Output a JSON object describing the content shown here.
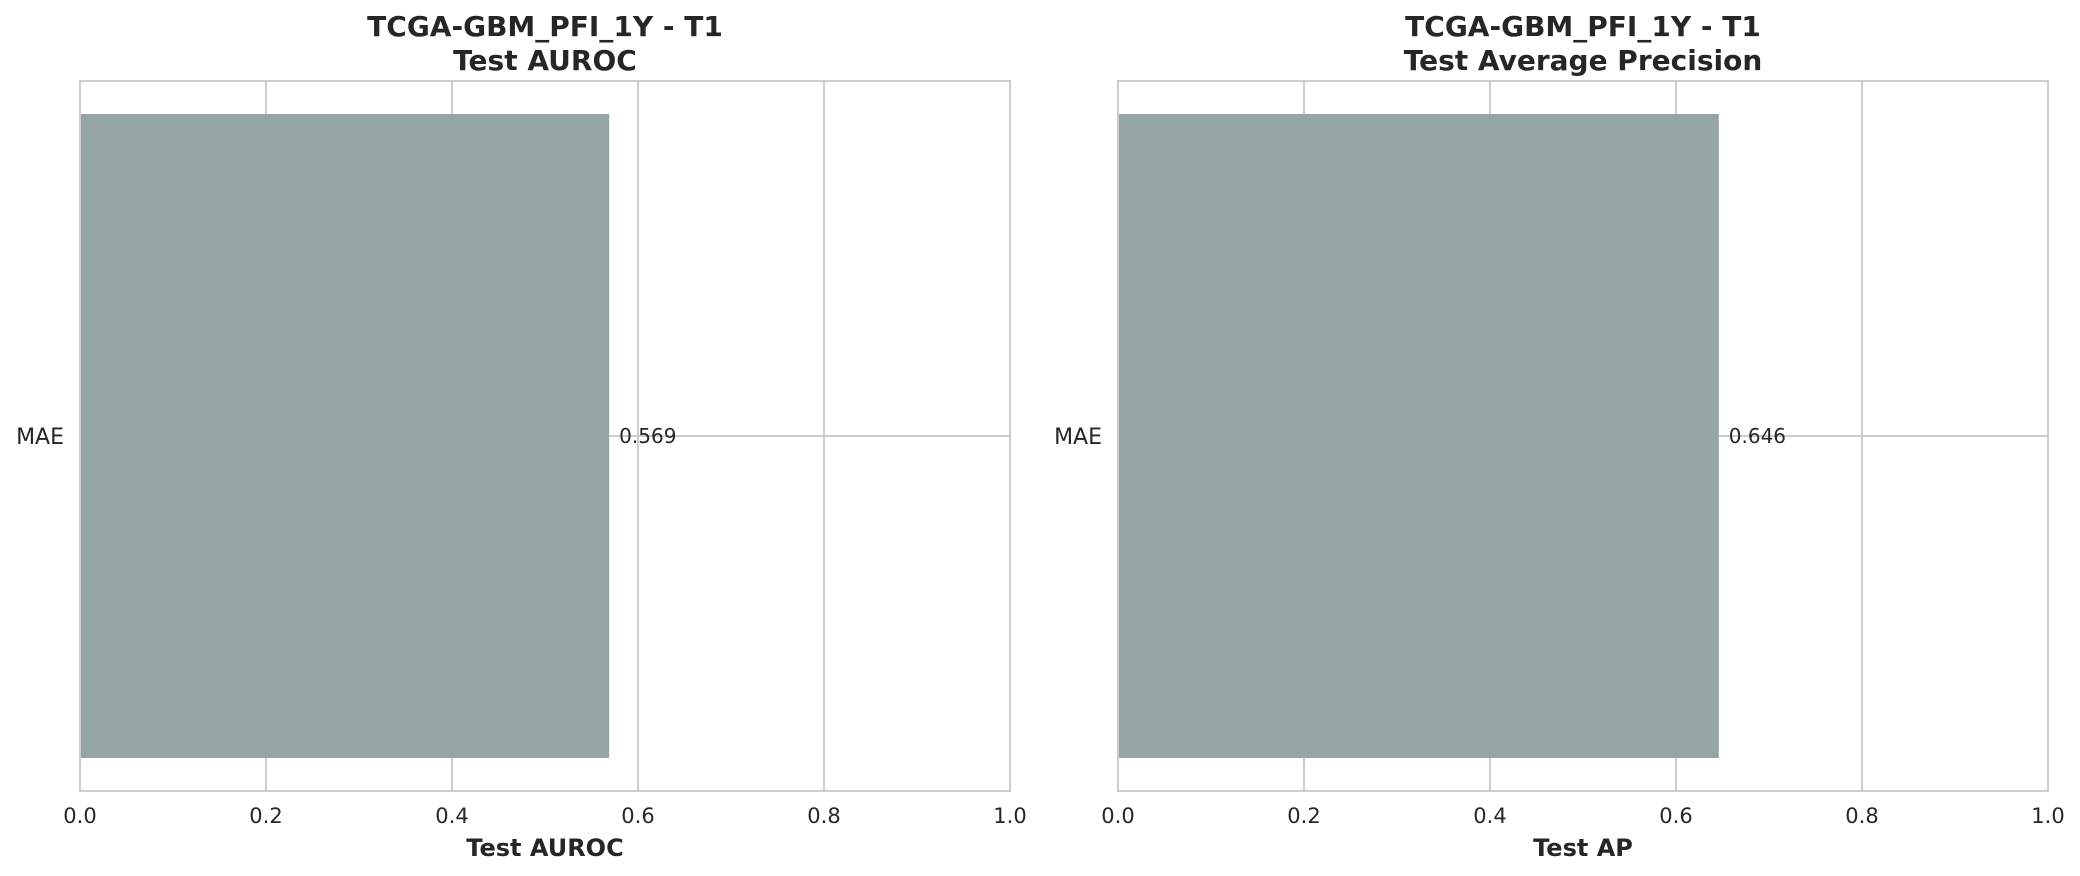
{
  "chart_data": [
    {
      "type": "bar",
      "orientation": "horizontal",
      "title": "TCGA-GBM_PFI_1Y - T1\nTest AUROC",
      "title_lines": [
        "TCGA-GBM_PFI_1Y - T1",
        "Test AUROC"
      ],
      "xlabel": "Test AUROC",
      "ylabel": "",
      "categories": [
        "MAE"
      ],
      "values": [
        0.569
      ],
      "value_labels": [
        "0.569"
      ],
      "xlim": [
        0.0,
        1.0
      ],
      "xticks": [
        0.0,
        0.2,
        0.4,
        0.6,
        0.8,
        1.0
      ],
      "xtick_labels": [
        "0.0",
        "0.2",
        "0.4",
        "0.6",
        "0.8",
        "1.0"
      ],
      "grid": true,
      "bar_color": "#95a5a6"
    },
    {
      "type": "bar",
      "orientation": "horizontal",
      "title": "TCGA-GBM_PFI_1Y - T1\nTest Average Precision",
      "title_lines": [
        "TCGA-GBM_PFI_1Y - T1",
        "Test Average Precision"
      ],
      "xlabel": "Test AP",
      "ylabel": "",
      "categories": [
        "MAE"
      ],
      "values": [
        0.646
      ],
      "value_labels": [
        "0.646"
      ],
      "xlim": [
        0.0,
        1.0
      ],
      "xticks": [
        0.0,
        0.2,
        0.4,
        0.6,
        0.8,
        1.0
      ],
      "xtick_labels": [
        "0.0",
        "0.2",
        "0.4",
        "0.6",
        "0.8",
        "1.0"
      ],
      "grid": true,
      "bar_color": "#95a5a6"
    }
  ],
  "colors": {
    "grid": "#cccccc",
    "frame": "#cccccc",
    "text": "#262626",
    "background": "#ffffff"
  }
}
